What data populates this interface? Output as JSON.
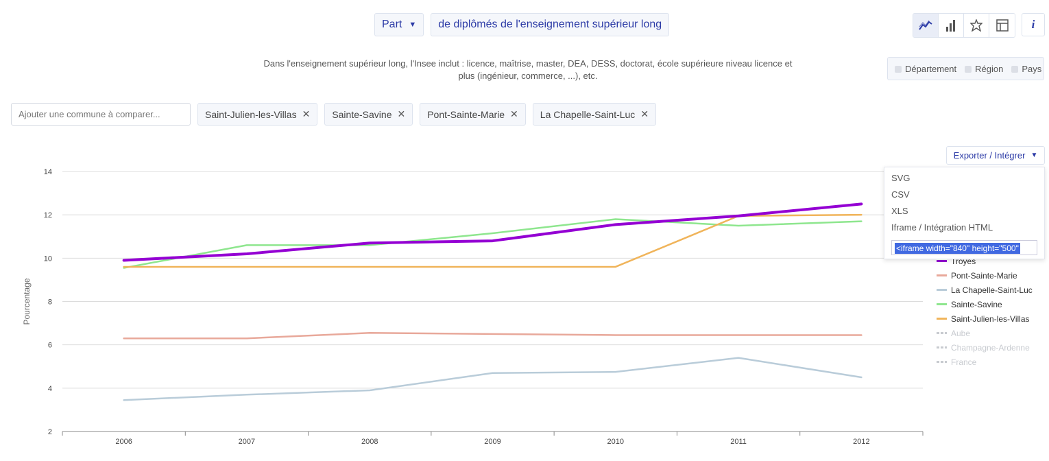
{
  "selectors": {
    "metric": "Part",
    "indicator": "de diplômés de l'enseignement supérieur long"
  },
  "description": "Dans l'enseignement supérieur long, l'Insee inclut : licence, maîtrise, master, DEA, DESS, doctorat, école supérieure niveau licence et plus (ingénieur, commerce, ...), etc.",
  "view_switch": {
    "icons": [
      "line-chart-icon",
      "bar-chart-icon",
      "map-icon",
      "table-icon"
    ],
    "info_label": "i"
  },
  "levels": [
    "Département",
    "Région",
    "Pays"
  ],
  "compare": {
    "placeholder": "Ajouter une commune à comparer...",
    "tags": [
      "Saint-Julien-les-Villas",
      "Sainte-Savine",
      "Pont-Sainte-Marie",
      "La Chapelle-Saint-Luc"
    ]
  },
  "export": {
    "label": "Exporter / Intégrer",
    "items": [
      "SVG",
      "CSV",
      "XLS",
      "Iframe / Intégration HTML"
    ],
    "embed_code": "<iframe width=\"840\" height=\"500\""
  },
  "colors": {
    "accent": "#2b3aa6",
    "troyes": "#9400d3",
    "pont_sainte_marie": "#e8a89a",
    "la_chapelle": "#b9ccd9",
    "sainte_savine": "#8ee68e",
    "saint_julien": "#f0b45a",
    "inactive": "#c8cbd0"
  },
  "chart_data": {
    "type": "line",
    "title": "",
    "xlabel": "",
    "ylabel": "Pourcentage",
    "x": [
      "2006",
      "2007",
      "2008",
      "2009",
      "2010",
      "2011",
      "2012"
    ],
    "ylim": [
      2,
      14
    ],
    "yticks": [
      2,
      4,
      6,
      8,
      10,
      12,
      14
    ],
    "grid": true,
    "legend_position": "right",
    "series": [
      {
        "name": "Troyes",
        "color": "#9400d3",
        "width": 4,
        "values": [
          9.9,
          10.2,
          10.7,
          10.8,
          11.55,
          11.95,
          12.5
        ]
      },
      {
        "name": "Pont-Sainte-Marie",
        "color": "#e8a89a",
        "width": 2.5,
        "values": [
          6.3,
          6.3,
          6.55,
          6.5,
          6.45,
          6.45,
          6.45
        ]
      },
      {
        "name": "La Chapelle-Saint-Luc",
        "color": "#b9ccd9",
        "width": 2.5,
        "values": [
          3.45,
          3.7,
          3.9,
          4.7,
          4.75,
          5.4,
          4.5
        ]
      },
      {
        "name": "Sainte-Savine",
        "color": "#8ee68e",
        "width": 2.5,
        "values": [
          9.55,
          10.6,
          10.6,
          11.15,
          11.8,
          11.5,
          11.7
        ]
      },
      {
        "name": "Saint-Julien-les-Villas",
        "color": "#f0b45a",
        "width": 2.5,
        "values": [
          9.6,
          9.6,
          9.6,
          9.6,
          9.6,
          11.95,
          12.0
        ]
      }
    ],
    "legend_inactive": [
      "Aube",
      "Champagne-Ardenne",
      "France"
    ]
  }
}
